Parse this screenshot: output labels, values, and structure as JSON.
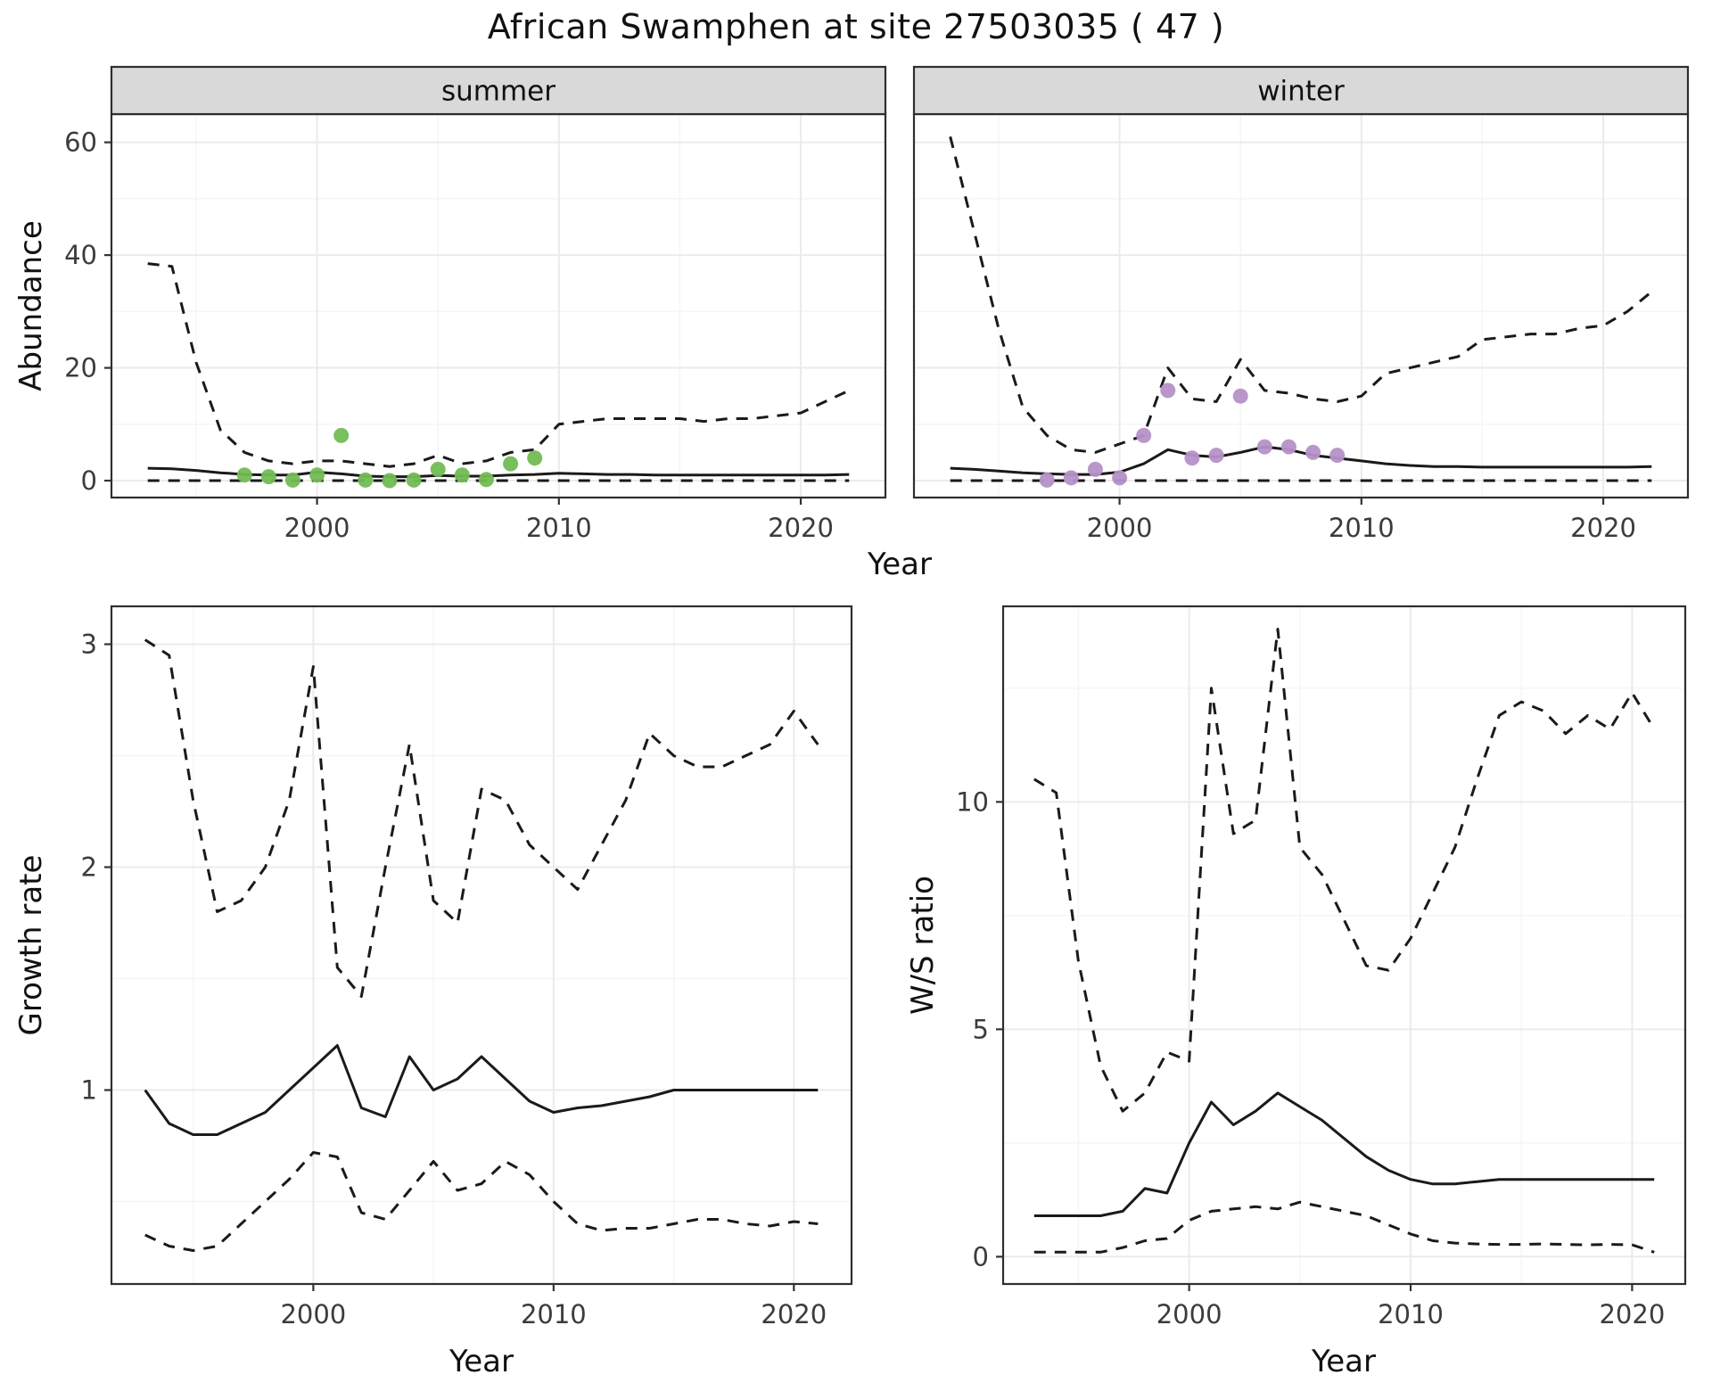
{
  "title": "African Swamphen at site 27503035 ( 47 )",
  "colors": {
    "summer_points": "#72BC54",
    "winter_points": "#B591C8",
    "line": "#1a1a1a",
    "strip_bg": "#d9d9d9",
    "strip_border": "#2e2e2e",
    "panel_border": "#2e2e2e",
    "grid_major": "#ebebeb",
    "grid_minor": "#f5f5f5",
    "tick_text": "#3c3c3c",
    "axis_text": "#111111"
  },
  "chart_data": [
    {
      "id": "abundance_summer",
      "type": "line",
      "facet_label": "summer",
      "xlabel": "Year",
      "ylabel": "Abundance",
      "xlim": [
        1991.5,
        2023.5
      ],
      "ylim": [
        -3,
        65
      ],
      "xticks": [
        2000,
        2010,
        2020
      ],
      "xticks_minor": [
        1995,
        2005,
        2015
      ],
      "yticks": [
        0,
        20,
        40,
        60
      ],
      "yticks_minor": [
        10,
        30,
        50
      ],
      "x": [
        1993,
        1994,
        1995,
        1996,
        1997,
        1998,
        1999,
        2000,
        2001,
        2002,
        2003,
        2004,
        2005,
        2006,
        2007,
        2008,
        2009,
        2010,
        2011,
        2012,
        2013,
        2014,
        2015,
        2016,
        2017,
        2018,
        2019,
        2020,
        2021,
        2022
      ],
      "series": [
        {
          "name": "upper_ci",
          "style": "dashed",
          "values": [
            38.5,
            38,
            21,
            9,
            5,
            3.5,
            3,
            3.5,
            3.5,
            3,
            2.5,
            3,
            4.5,
            3,
            3.5,
            5,
            5.5,
            10,
            10.5,
            11,
            11,
            11,
            11,
            10.5,
            11,
            11,
            11.5,
            12,
            14,
            16
          ]
        },
        {
          "name": "median",
          "style": "solid",
          "values": [
            2.2,
            2.1,
            1.8,
            1.4,
            1.1,
            1,
            1,
            1.5,
            1.2,
            0.8,
            0.7,
            0.7,
            0.9,
            0.8,
            0.8,
            1,
            1.1,
            1.3,
            1.2,
            1.1,
            1.1,
            1,
            1,
            1,
            1,
            1,
            1,
            1,
            1,
            1.1
          ]
        },
        {
          "name": "lower_ci",
          "style": "dashed",
          "values": [
            0,
            0,
            0,
            0,
            0,
            0,
            0,
            0,
            0,
            0,
            0,
            0,
            0,
            0,
            0,
            0,
            0,
            0,
            0,
            0,
            0,
            0,
            0,
            0,
            0,
            0,
            0,
            0,
            0,
            0
          ]
        }
      ],
      "points": {
        "label": "observed_counts",
        "color_key": "summer_points",
        "x": [
          1997,
          1998,
          1999,
          2000,
          2001,
          2002,
          2003,
          2004,
          2005,
          2006,
          2007,
          2008,
          2009
        ],
        "y": [
          1,
          0.7,
          0.1,
          1,
          8,
          0.1,
          0,
          0.1,
          2,
          1,
          0.2,
          3,
          4
        ]
      }
    },
    {
      "id": "abundance_winter",
      "type": "line",
      "facet_label": "winter",
      "xlabel": "Year",
      "ylabel": "Abundance",
      "xlim": [
        1991.5,
        2023.5
      ],
      "ylim": [
        -3,
        65
      ],
      "xticks": [
        2000,
        2010,
        2020
      ],
      "xticks_minor": [
        1995,
        2005,
        2015
      ],
      "yticks": [
        0,
        20,
        40,
        60
      ],
      "yticks_minor": [
        10,
        30,
        50
      ],
      "x": [
        1993,
        1994,
        1995,
        1996,
        1997,
        1998,
        1999,
        2000,
        2001,
        2002,
        2003,
        2004,
        2005,
        2006,
        2007,
        2008,
        2009,
        2010,
        2011,
        2012,
        2013,
        2014,
        2015,
        2016,
        2017,
        2018,
        2019,
        2020,
        2021,
        2022
      ],
      "series": [
        {
          "name": "upper_ci",
          "style": "dashed",
          "values": [
            61,
            44,
            27,
            13,
            8,
            5.5,
            5,
            6.5,
            8,
            20,
            14.5,
            14,
            21.5,
            16,
            15.5,
            14.5,
            14,
            15,
            19,
            20,
            21,
            22,
            25,
            25.5,
            26,
            26,
            27,
            27.5,
            30,
            33.5
          ]
        },
        {
          "name": "median",
          "style": "solid",
          "values": [
            2.2,
            2,
            1.7,
            1.4,
            1.2,
            1.1,
            1.1,
            1.5,
            3,
            5.5,
            4.5,
            4.2,
            5,
            6,
            5.5,
            4.5,
            4,
            3.5,
            3,
            2.7,
            2.5,
            2.5,
            2.4,
            2.4,
            2.4,
            2.4,
            2.4,
            2.4,
            2.4,
            2.5
          ]
        },
        {
          "name": "lower_ci",
          "style": "dashed",
          "values": [
            0,
            0,
            0,
            0,
            0,
            0,
            0,
            0,
            0,
            0,
            0,
            0,
            0,
            0,
            0,
            0,
            0,
            0,
            0,
            0,
            0,
            0,
            0,
            0,
            0,
            0,
            0,
            0,
            0,
            0
          ]
        }
      ],
      "points": {
        "label": "observed_counts",
        "color_key": "winter_points",
        "x": [
          1997,
          1998,
          1999,
          2000,
          2001,
          2002,
          2003,
          2004,
          2005,
          2006,
          2007,
          2008,
          2009
        ],
        "y": [
          0.1,
          0.5,
          2,
          0.5,
          8,
          16,
          4,
          4.5,
          15,
          6,
          6,
          5,
          4.5
        ]
      }
    },
    {
      "id": "growth_rate",
      "type": "line",
      "facet_label": null,
      "xlabel": "Year",
      "ylabel": "Growth rate",
      "xlim": [
        1991.6,
        2022.4
      ],
      "ylim": [
        0.13,
        3.17
      ],
      "xticks": [
        2000,
        2010,
        2020
      ],
      "xticks_minor": [
        1995,
        2005,
        2015
      ],
      "yticks": [
        1,
        2,
        3
      ],
      "yticks_minor": [
        0.5,
        1.5,
        2.5
      ],
      "x": [
        1993,
        1994,
        1995,
        1996,
        1997,
        1998,
        1999,
        2000,
        2001,
        2002,
        2003,
        2004,
        2005,
        2006,
        2007,
        2008,
        2009,
        2010,
        2011,
        2012,
        2013,
        2014,
        2015,
        2016,
        2017,
        2018,
        2019,
        2020,
        2021
      ],
      "series": [
        {
          "name": "upper_ci",
          "style": "dashed",
          "values": [
            3.02,
            2.95,
            2.3,
            1.8,
            1.85,
            2,
            2.3,
            2.9,
            1.55,
            1.42,
            2,
            2.55,
            1.85,
            1.75,
            2.35,
            2.3,
            2.1,
            2,
            1.9,
            2.1,
            2.3,
            2.6,
            2.5,
            2.45,
            2.45,
            2.5,
            2.55,
            2.7,
            2.55
          ]
        },
        {
          "name": "median",
          "style": "solid",
          "values": [
            1,
            0.85,
            0.8,
            0.8,
            0.85,
            0.9,
            1,
            1.1,
            1.2,
            0.92,
            0.88,
            1.15,
            1,
            1.05,
            1.15,
            1.05,
            0.95,
            0.9,
            0.92,
            0.93,
            0.95,
            0.97,
            1,
            1,
            1,
            1,
            1,
            1,
            1
          ]
        },
        {
          "name": "lower_ci",
          "style": "dashed",
          "values": [
            0.35,
            0.3,
            0.28,
            0.3,
            0.4,
            0.5,
            0.6,
            0.72,
            0.7,
            0.45,
            0.42,
            0.55,
            0.68,
            0.55,
            0.58,
            0.68,
            0.62,
            0.5,
            0.4,
            0.37,
            0.38,
            0.38,
            0.4,
            0.42,
            0.42,
            0.4,
            0.39,
            0.41,
            0.4
          ]
        }
      ]
    },
    {
      "id": "ws_ratio",
      "type": "line",
      "facet_label": null,
      "xlabel": "Year",
      "ylabel": "W/S ratio",
      "xlim": [
        1991.6,
        2022.4
      ],
      "ylim": [
        -0.6,
        14.3
      ],
      "xticks": [
        2000,
        2010,
        2020
      ],
      "xticks_minor": [
        1995,
        2005,
        2015
      ],
      "yticks": [
        0,
        5,
        10
      ],
      "yticks_minor": [
        2.5,
        7.5,
        12.5
      ],
      "x": [
        1993,
        1994,
        1995,
        1996,
        1997,
        1998,
        1999,
        2000,
        2001,
        2002,
        2003,
        2004,
        2005,
        2006,
        2007,
        2008,
        2009,
        2010,
        2011,
        2012,
        2013,
        2014,
        2015,
        2016,
        2017,
        2018,
        2019,
        2020,
        2021
      ],
      "series": [
        {
          "name": "upper_ci",
          "style": "dashed",
          "values": [
            10.5,
            10.2,
            6.5,
            4.2,
            3.2,
            3.6,
            4.5,
            4.3,
            12.5,
            9.3,
            9.6,
            13.8,
            9,
            8.4,
            7.4,
            6.4,
            6.3,
            7,
            8,
            9,
            10.5,
            11.9,
            12.2,
            12,
            11.5,
            11.9,
            11.6,
            12.4,
            11.6
          ]
        },
        {
          "name": "median",
          "style": "solid",
          "values": [
            0.9,
            0.9,
            0.9,
            0.9,
            1,
            1.5,
            1.4,
            2.5,
            3.4,
            2.9,
            3.2,
            3.6,
            3.3,
            3,
            2.6,
            2.2,
            1.9,
            1.7,
            1.6,
            1.6,
            1.65,
            1.7,
            1.7,
            1.7,
            1.7,
            1.7,
            1.7,
            1.7,
            1.7
          ]
        },
        {
          "name": "lower_ci",
          "style": "dashed",
          "values": [
            0.1,
            0.1,
            0.1,
            0.1,
            0.2,
            0.35,
            0.4,
            0.8,
            1,
            1.05,
            1.1,
            1.05,
            1.2,
            1.1,
            1,
            0.9,
            0.7,
            0.5,
            0.35,
            0.3,
            0.28,
            0.27,
            0.27,
            0.28,
            0.27,
            0.26,
            0.27,
            0.26,
            0.1
          ]
        }
      ]
    }
  ]
}
